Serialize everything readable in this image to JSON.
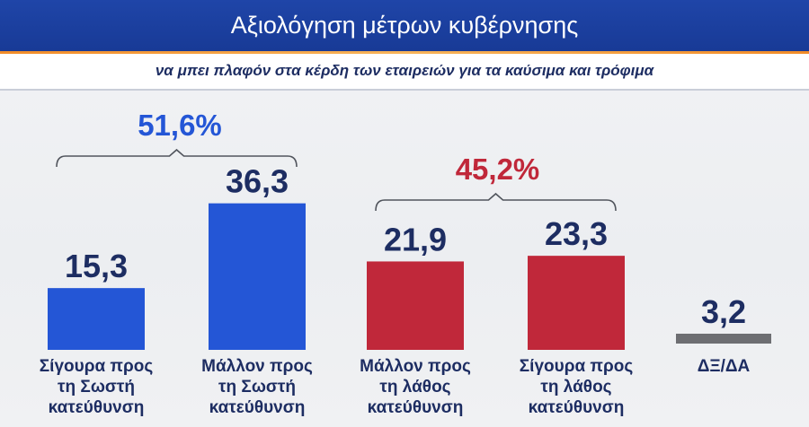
{
  "title": "Αξιολόγηση μέτρων κυβέρνησης",
  "subtitle": "να μπει πλαφόν στα κέρδη των εταιρειών για τα καύσιμα και τρόφιμα",
  "chart_data": {
    "type": "bar",
    "title": "Αξιολόγηση μέτρων κυβέρνησης",
    "subtitle": "να μπει πλαφόν στα κέρδη των εταιρειών για τα καύσιμα και τρόφιμα",
    "categories": [
      [
        "Σίγουρα προς",
        "τη Σωστή",
        "κατεύθυνση"
      ],
      [
        "Μάλλον προς",
        "τη Σωστή",
        "κατεύθυνση"
      ],
      [
        "Μάλλον προς",
        "τη λάθος",
        "κατεύθυνση"
      ],
      [
        "Σίγουρα προς",
        "τη λάθος",
        "κατεύθυνση"
      ],
      [
        "ΔΞ/ΔΑ"
      ]
    ],
    "values": [
      15.3,
      36.3,
      21.9,
      23.3,
      3.2
    ],
    "value_labels": [
      "15,3",
      "36,3",
      "21,9",
      "23,3",
      "3,2"
    ],
    "bar_colors": [
      "#2456d6",
      "#2456d6",
      "#c0283a",
      "#c0283a",
      "#6d6e72"
    ],
    "groups": [
      {
        "label": "51,6%",
        "members": [
          0,
          1
        ],
        "color": "#2456d6"
      },
      {
        "label": "45,2%",
        "members": [
          2,
          3
        ],
        "color": "#c0283a"
      }
    ],
    "xlabel": "",
    "ylabel": ""
  }
}
